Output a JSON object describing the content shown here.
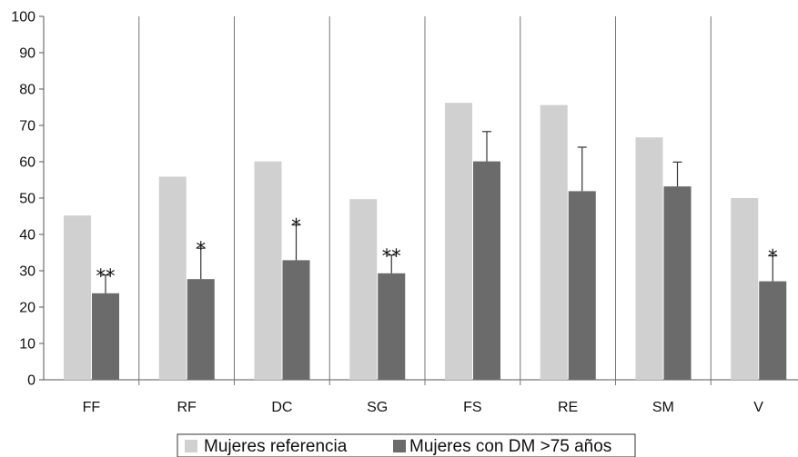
{
  "chart_data": {
    "type": "bar",
    "title": "",
    "xlabel": "",
    "ylabel": "",
    "ylim": [
      0,
      100
    ],
    "yticks": [
      0,
      10,
      20,
      30,
      40,
      50,
      60,
      70,
      80,
      90,
      100
    ],
    "categories": [
      "FF",
      "RF",
      "DC",
      "SG",
      "FS",
      "RE",
      "SM",
      "V"
    ],
    "series": [
      {
        "name": "Mujeres referencia",
        "color": "#d0d0d0",
        "values": [
          45.2,
          55.9,
          60.1,
          49.7,
          76.2,
          75.6,
          66.7,
          50.0
        ]
      },
      {
        "name": "Mujeres con DM >75 años",
        "color": "#6b6b6b",
        "values": [
          23.8,
          27.7,
          32.9,
          29.3,
          60.1,
          51.9,
          53.2,
          27.1
        ],
        "error": [
          5.0,
          8.5,
          9.7,
          5.0,
          8.2,
          12.1,
          6.7,
          7.0
        ]
      }
    ],
    "significance": [
      "**",
      "*",
      "*",
      "**",
      "",
      "",
      "",
      "*"
    ],
    "grid": false,
    "category_separators": true,
    "legend": {
      "position": "bottom",
      "boxed": true
    }
  }
}
